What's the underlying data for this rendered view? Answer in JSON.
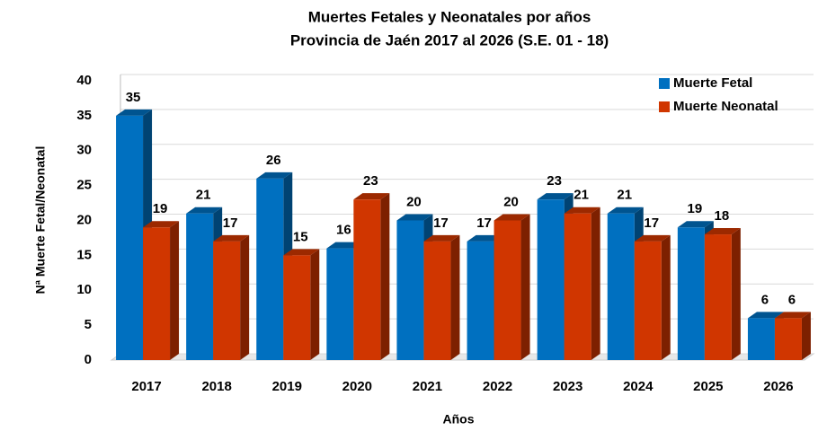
{
  "chart_data": {
    "type": "bar3d",
    "title": "Muertes Fetales y Neonatales por años",
    "subtitle": "Provincia de Jaén 2017 al 2026 (S.E. 01 - 18)",
    "x_label": "Años",
    "y_label": "Nª Muerte Fetal/Neonatal",
    "categories": [
      "2017",
      "2018",
      "2019",
      "2020",
      "2021",
      "2022",
      "2023",
      "2024",
      "2025",
      "2026"
    ],
    "series": [
      {
        "name": "Muerte Fetal",
        "color": "#0070c0",
        "values": [
          35,
          21,
          26,
          16,
          20,
          17,
          23,
          21,
          19,
          6
        ]
      },
      {
        "name": "Muerte Neonatal",
        "color": "#d03600",
        "values": [
          19,
          17,
          15,
          23,
          17,
          20,
          21,
          17,
          18,
          6
        ]
      }
    ],
    "ylim": [
      0,
      40
    ],
    "yticks": [
      0,
      5,
      10,
      15,
      20,
      25,
      30,
      35,
      40
    ],
    "grid": true,
    "legend": "upper right"
  }
}
